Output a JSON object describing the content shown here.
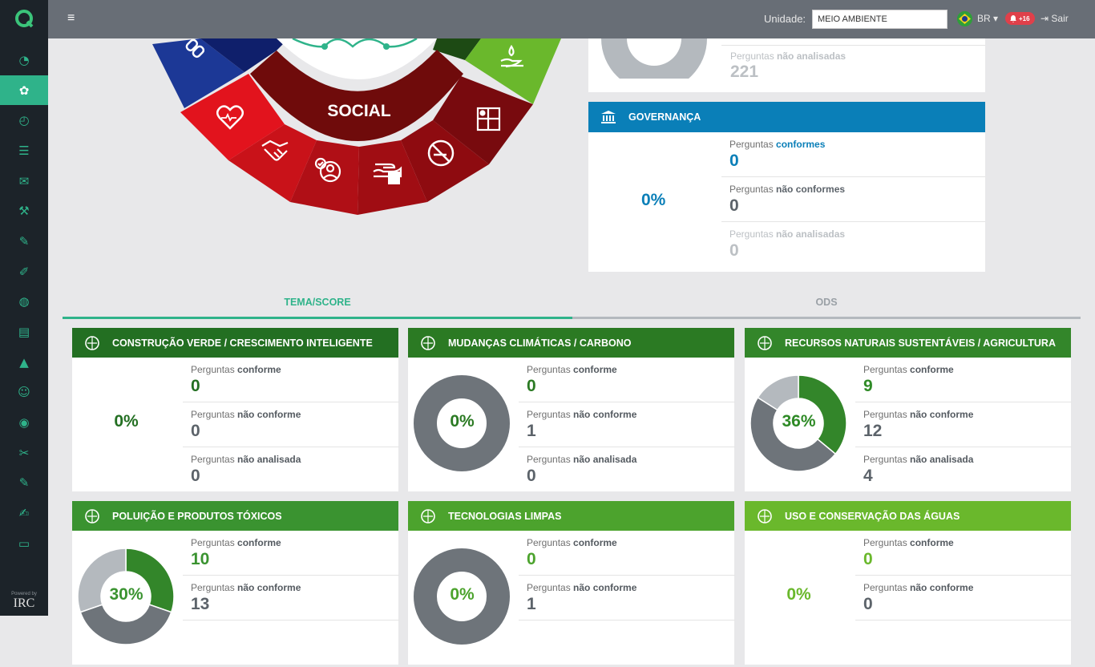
{
  "app": {
    "logo": "Q",
    "powered_by": "Powered by",
    "brand": "IRC"
  },
  "topbar": {
    "menu_icon": "≡",
    "unit_label": "Unidade:",
    "unit_value": "MEIO AMBIENTE",
    "lang": "BR ▾",
    "notifications": "+16",
    "logout": "Sair"
  },
  "sidebar": {
    "items": [
      "dashboard",
      "esg",
      "gauge",
      "checklist",
      "chat",
      "tools",
      "edit",
      "brush",
      "globe",
      "document",
      "warning",
      "user-settings",
      "map-pin",
      "paint",
      "edit-2",
      "user-edit",
      "folder"
    ]
  },
  "wheel": {
    "label": "SOCIAL"
  },
  "top_right": {
    "perguntas": "Perguntas",
    "nao_analisadas": "não analisadas",
    "value": "221"
  },
  "governanca": {
    "title": "GOVERNANÇA",
    "percent": "0%",
    "stats": [
      {
        "a": "Perguntas",
        "b": "conformes",
        "v": "0"
      },
      {
        "a": "Perguntas",
        "b": "não conformes",
        "v": "0"
      },
      {
        "a": "Perguntas",
        "b": "não analisadas",
        "v": "0"
      }
    ]
  },
  "tabs": [
    {
      "label": "TEMA/SCORE",
      "active": true
    },
    {
      "label": "ODS",
      "active": false
    }
  ],
  "themes": [
    {
      "title": "CONSTRUÇÃO VERDE / CRESCIMENTO INTELIGENTE",
      "percent": "0%",
      "color": "#236f22",
      "pcolor": "#236f22",
      "donut": false,
      "stats": [
        {
          "a": "Perguntas",
          "b": "conforme",
          "v": "0"
        },
        {
          "a": "Perguntas",
          "b": "não conforme",
          "v": "0"
        },
        {
          "a": "Perguntas",
          "b": "não analisada",
          "v": "0"
        }
      ],
      "values": {
        "conforme": 0,
        "nao_conforme": 0,
        "nao_analisada": 0
      }
    },
    {
      "title": "MUDANÇAS CLIMÁTICAS / CARBONO",
      "percent": "0%",
      "color": "#2b7a23",
      "pcolor": "#2b7a23",
      "donut": true,
      "stats": [
        {
          "a": "Perguntas",
          "b": "conforme",
          "v": "0"
        },
        {
          "a": "Perguntas",
          "b": "não conforme",
          "v": "1"
        },
        {
          "a": "Perguntas",
          "b": "não analisada",
          "v": "0"
        }
      ],
      "values": {
        "conforme": 0,
        "nao_conforme": 1,
        "nao_analisada": 0
      }
    },
    {
      "title": "RECURSOS NATURAIS SUSTENTÁVEIS / AGRICULTURA",
      "percent": "36%",
      "color": "#33862a",
      "pcolor": "#2e8a26",
      "donut": true,
      "stats": [
        {
          "a": "Perguntas",
          "b": "conforme",
          "v": "9"
        },
        {
          "a": "Perguntas",
          "b": "não conforme",
          "v": "12"
        },
        {
          "a": "Perguntas",
          "b": "não analisada",
          "v": "4"
        }
      ],
      "values": {
        "conforme": 9,
        "nao_conforme": 12,
        "nao_analisada": 4
      }
    },
    {
      "title": "POLUIÇÃO E PRODUTOS TÓXICOS",
      "percent": "30%",
      "color": "#3a9330",
      "pcolor": "#3a9330",
      "donut": true,
      "stats": [
        {
          "a": "Perguntas",
          "b": "conforme",
          "v": "10"
        },
        {
          "a": "Perguntas",
          "b": "não conforme",
          "v": "13"
        }
      ],
      "values": {
        "conforme": 10,
        "nao_conforme": 13,
        "nao_analisada": 10
      }
    },
    {
      "title": "TECNOLOGIAS LIMPAS",
      "percent": "0%",
      "color": "#4ca32d",
      "pcolor": "#4ca32d",
      "donut": true,
      "stats": [
        {
          "a": "Perguntas",
          "b": "conforme",
          "v": "0"
        },
        {
          "a": "Perguntas",
          "b": "não conforme",
          "v": "1"
        }
      ],
      "values": {
        "conforme": 0,
        "nao_conforme": 1,
        "nao_analisada": 0
      }
    },
    {
      "title": "USO E CONSERVAÇÃO DAS ÁGUAS",
      "percent": "0%",
      "color": "#6ab82c",
      "pcolor": "#6ab82c",
      "donut": false,
      "stats": [
        {
          "a": "Perguntas",
          "b": "conforme",
          "v": "0"
        },
        {
          "a": "Perguntas",
          "b": "não conforme",
          "v": "0"
        }
      ],
      "values": {
        "conforme": 0,
        "nao_conforme": 0,
        "nao_analisada": 0
      }
    }
  ],
  "colors": {
    "conforme": "#33862a",
    "nao_conforme": "#6e747a",
    "nao_analisada": "#b4b9be",
    "governanca": "#0a7fb8",
    "sidebar_active": "#2fb38a"
  }
}
